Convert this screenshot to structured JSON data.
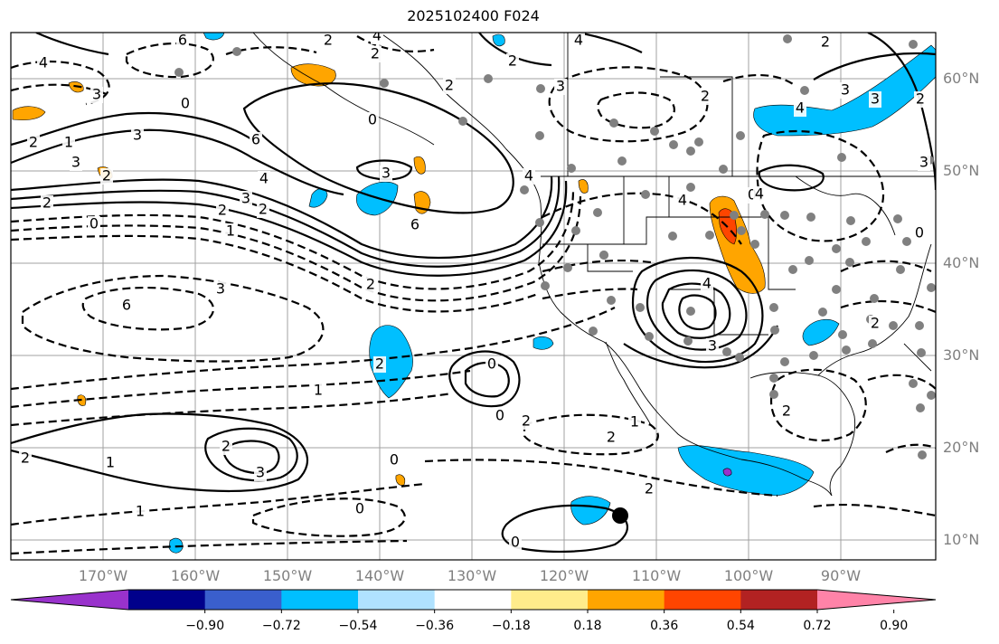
{
  "title": "2025102400 F024",
  "lat_labels": [
    "60°N",
    "50°N",
    "40°N",
    "30°N",
    "20°N",
    "10°N"
  ],
  "lon_labels": [
    "170°W",
    "160°W",
    "150°W",
    "140°W",
    "130°W",
    "120°W",
    "110°W",
    "100°W",
    "90°W"
  ],
  "colorbar": {
    "ticks": [
      "−0.90",
      "−0.72",
      "−0.54",
      "−0.36",
      "−0.18",
      "0.18",
      "0.36",
      "0.54",
      "0.72",
      "0.90"
    ],
    "colors": [
      "#9932cc",
      "#00008b",
      "#3a5fcd",
      "#00bfff",
      "#b0e2ff",
      "#ffffff",
      "#ffec8b",
      "#ffa500",
      "#ff4500",
      "#b22222",
      "#ff83a8"
    ]
  },
  "contour_labels": [
    "4",
    "3",
    "0",
    "2",
    "1",
    "3",
    "2",
    "3",
    "0",
    "6",
    "3",
    "4",
    "3",
    "2",
    "2",
    "0",
    "1",
    "2",
    "6",
    "2",
    "3",
    "6",
    "4",
    "4",
    "0",
    "4",
    "3",
    "3",
    "4",
    "2",
    "3",
    "2",
    "2",
    "4",
    "2",
    "2",
    "1",
    "0",
    "2",
    "1",
    "2",
    "3",
    "2",
    "0",
    "1",
    "2",
    "0",
    "0",
    "1",
    "0",
    "2",
    "4",
    "4",
    "3",
    "3",
    "2",
    "2",
    "0",
    "2",
    "6",
    "2",
    "2"
  ]
}
